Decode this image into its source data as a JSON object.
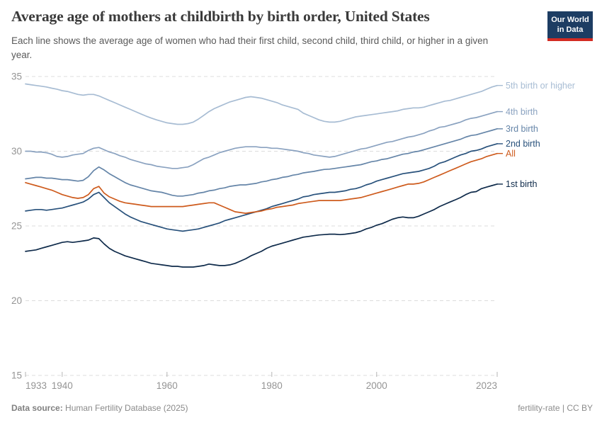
{
  "header": {
    "title": "Average age of mothers at childbirth by birth order, United States",
    "subtitle": "Each line shows the average age of women who had their first child, second child, third child, or higher in a given year.",
    "logo": {
      "line1": "Our World",
      "line2": "in Data"
    }
  },
  "chart_data": {
    "type": "line",
    "title": "Average age of mothers at childbirth by birth order, United States",
    "xlabel": "",
    "ylabel": "",
    "xlim": [
      1933,
      2023
    ],
    "ylim": [
      15,
      35
    ],
    "yticks": [
      15,
      20,
      25,
      30,
      35
    ],
    "xticks": [
      1933,
      1940,
      1960,
      1980,
      2000,
      2023
    ],
    "grid": "dashed-horizontal",
    "legend_position": "right-of-lines",
    "years": [
      1933,
      1934,
      1935,
      1936,
      1937,
      1938,
      1939,
      1940,
      1941,
      1942,
      1943,
      1944,
      1945,
      1946,
      1947,
      1948,
      1949,
      1950,
      1951,
      1952,
      1953,
      1954,
      1955,
      1956,
      1957,
      1958,
      1959,
      1960,
      1961,
      1962,
      1963,
      1964,
      1965,
      1966,
      1967,
      1968,
      1969,
      1970,
      1971,
      1972,
      1973,
      1974,
      1975,
      1976,
      1977,
      1978,
      1979,
      1980,
      1981,
      1982,
      1983,
      1984,
      1985,
      1986,
      1987,
      1988,
      1989,
      1990,
      1991,
      1992,
      1993,
      1994,
      1995,
      1996,
      1997,
      1998,
      1999,
      2000,
      2001,
      2002,
      2003,
      2004,
      2005,
      2006,
      2007,
      2008,
      2009,
      2010,
      2011,
      2012,
      2013,
      2014,
      2015,
      2016,
      2017,
      2018,
      2019,
      2020,
      2021,
      2022,
      2023
    ],
    "series": [
      {
        "name": "5th birth or higher",
        "color": "#a7bcd3",
        "values": [
          34.5,
          34.45,
          34.4,
          34.35,
          34.3,
          34.22,
          34.15,
          34.05,
          34.0,
          33.9,
          33.8,
          33.75,
          33.8,
          33.8,
          33.7,
          33.55,
          33.4,
          33.25,
          33.1,
          32.95,
          32.8,
          32.65,
          32.5,
          32.35,
          32.22,
          32.1,
          32.0,
          31.9,
          31.85,
          31.8,
          31.8,
          31.85,
          31.95,
          32.15,
          32.4,
          32.65,
          32.85,
          33.0,
          33.15,
          33.3,
          33.4,
          33.5,
          33.6,
          33.65,
          33.6,
          33.55,
          33.45,
          33.35,
          33.25,
          33.1,
          33.0,
          32.9,
          32.8,
          32.55,
          32.4,
          32.25,
          32.1,
          32.0,
          31.95,
          31.95,
          32.0,
          32.1,
          32.2,
          32.3,
          32.35,
          32.4,
          32.45,
          32.5,
          32.55,
          32.6,
          32.65,
          32.7,
          32.8,
          32.85,
          32.9,
          32.9,
          32.95,
          33.05,
          33.15,
          33.25,
          33.35,
          33.4,
          33.5,
          33.6,
          33.7,
          33.8,
          33.9,
          34.0,
          34.15,
          34.3,
          34.4
        ]
      },
      {
        "name": "4th birth",
        "color": "#8aa2c0",
        "values": [
          30.0,
          30.0,
          29.95,
          29.95,
          29.9,
          29.8,
          29.65,
          29.6,
          29.65,
          29.75,
          29.8,
          29.85,
          30.05,
          30.2,
          30.25,
          30.1,
          29.95,
          29.85,
          29.7,
          29.6,
          29.45,
          29.35,
          29.25,
          29.15,
          29.1,
          29.0,
          28.95,
          28.9,
          28.85,
          28.85,
          28.9,
          28.95,
          29.1,
          29.3,
          29.5,
          29.6,
          29.75,
          29.9,
          30.0,
          30.1,
          30.2,
          30.25,
          30.3,
          30.3,
          30.3,
          30.25,
          30.25,
          30.2,
          30.2,
          30.15,
          30.1,
          30.05,
          30.0,
          29.9,
          29.85,
          29.75,
          29.7,
          29.65,
          29.6,
          29.65,
          29.75,
          29.85,
          29.95,
          30.05,
          30.15,
          30.2,
          30.3,
          30.4,
          30.5,
          30.6,
          30.65,
          30.75,
          30.85,
          30.95,
          31.0,
          31.1,
          31.2,
          31.35,
          31.45,
          31.6,
          31.65,
          31.75,
          31.85,
          31.95,
          32.1,
          32.2,
          32.25,
          32.35,
          32.45,
          32.55,
          32.65
        ]
      },
      {
        "name": "3rd birth",
        "color": "#6585a8",
        "values": [
          28.15,
          28.2,
          28.25,
          28.25,
          28.2,
          28.2,
          28.15,
          28.1,
          28.1,
          28.05,
          28.0,
          28.05,
          28.3,
          28.7,
          28.95,
          28.75,
          28.5,
          28.3,
          28.1,
          27.9,
          27.75,
          27.65,
          27.55,
          27.45,
          27.35,
          27.3,
          27.25,
          27.15,
          27.05,
          27.0,
          27.0,
          27.05,
          27.1,
          27.2,
          27.25,
          27.35,
          27.4,
          27.5,
          27.55,
          27.65,
          27.7,
          27.75,
          27.75,
          27.8,
          27.85,
          27.95,
          28.0,
          28.1,
          28.15,
          28.25,
          28.3,
          28.4,
          28.45,
          28.55,
          28.6,
          28.65,
          28.72,
          28.78,
          28.8,
          28.85,
          28.9,
          28.95,
          29.0,
          29.05,
          29.1,
          29.2,
          29.3,
          29.35,
          29.45,
          29.5,
          29.6,
          29.7,
          29.8,
          29.85,
          29.95,
          30.0,
          30.1,
          30.2,
          30.3,
          30.4,
          30.5,
          30.6,
          30.7,
          30.8,
          30.95,
          31.05,
          31.1,
          31.2,
          31.3,
          31.4,
          31.5
        ]
      },
      {
        "name": "2nd birth",
        "color": "#28517b",
        "values": [
          26.0,
          26.05,
          26.1,
          26.1,
          26.05,
          26.1,
          26.15,
          26.2,
          26.3,
          26.4,
          26.5,
          26.6,
          26.8,
          27.1,
          27.25,
          26.9,
          26.55,
          26.3,
          26.05,
          25.8,
          25.6,
          25.45,
          25.3,
          25.2,
          25.1,
          25.0,
          24.9,
          24.8,
          24.75,
          24.7,
          24.65,
          24.7,
          24.75,
          24.8,
          24.9,
          25.0,
          25.1,
          25.2,
          25.35,
          25.45,
          25.55,
          25.65,
          25.75,
          25.85,
          25.95,
          26.05,
          26.15,
          26.3,
          26.4,
          26.5,
          26.6,
          26.7,
          26.8,
          26.95,
          27.0,
          27.1,
          27.15,
          27.2,
          27.25,
          27.25,
          27.3,
          27.35,
          27.45,
          27.5,
          27.6,
          27.75,
          27.85,
          28.0,
          28.1,
          28.2,
          28.3,
          28.4,
          28.5,
          28.55,
          28.6,
          28.65,
          28.75,
          28.85,
          29.0,
          29.2,
          29.3,
          29.45,
          29.6,
          29.75,
          29.85,
          30.0,
          30.05,
          30.15,
          30.3,
          30.4,
          30.5
        ]
      },
      {
        "name": "All",
        "color": "#ce5b1d",
        "values": [
          27.9,
          27.8,
          27.7,
          27.6,
          27.5,
          27.4,
          27.25,
          27.1,
          27.0,
          26.9,
          26.85,
          26.9,
          27.1,
          27.5,
          27.65,
          27.2,
          26.95,
          26.8,
          26.65,
          26.55,
          26.5,
          26.45,
          26.4,
          26.35,
          26.3,
          26.3,
          26.3,
          26.3,
          26.3,
          26.3,
          26.3,
          26.35,
          26.4,
          26.45,
          26.5,
          26.55,
          26.55,
          26.4,
          26.25,
          26.1,
          25.95,
          25.9,
          25.85,
          25.9,
          25.95,
          26.0,
          26.1,
          26.15,
          26.25,
          26.3,
          26.35,
          26.4,
          26.5,
          26.55,
          26.6,
          26.65,
          26.7,
          26.7,
          26.7,
          26.7,
          26.7,
          26.75,
          26.8,
          26.85,
          26.9,
          27.0,
          27.1,
          27.2,
          27.3,
          27.4,
          27.5,
          27.6,
          27.7,
          27.8,
          27.8,
          27.85,
          27.95,
          28.1,
          28.25,
          28.4,
          28.55,
          28.7,
          28.85,
          29.0,
          29.15,
          29.3,
          29.4,
          29.5,
          29.65,
          29.75,
          29.85
        ]
      },
      {
        "name": "1st birth",
        "color": "#0e2a4a",
        "values": [
          23.3,
          23.35,
          23.4,
          23.5,
          23.6,
          23.7,
          23.8,
          23.9,
          23.95,
          23.9,
          23.95,
          24.0,
          24.05,
          24.2,
          24.15,
          23.8,
          23.5,
          23.3,
          23.15,
          23.0,
          22.9,
          22.8,
          22.7,
          22.6,
          22.5,
          22.45,
          22.4,
          22.35,
          22.3,
          22.3,
          22.25,
          22.25,
          22.25,
          22.3,
          22.35,
          22.45,
          22.4,
          22.35,
          22.35,
          22.4,
          22.5,
          22.65,
          22.8,
          23.0,
          23.15,
          23.3,
          23.5,
          23.65,
          23.75,
          23.85,
          23.95,
          24.05,
          24.15,
          24.25,
          24.3,
          24.35,
          24.4,
          24.42,
          24.45,
          24.45,
          24.42,
          24.45,
          24.5,
          24.55,
          24.65,
          24.8,
          24.9,
          25.05,
          25.15,
          25.3,
          25.45,
          25.55,
          25.6,
          25.55,
          25.55,
          25.65,
          25.8,
          25.95,
          26.1,
          26.3,
          26.45,
          26.6,
          26.75,
          26.9,
          27.1,
          27.25,
          27.3,
          27.5,
          27.6,
          27.7,
          27.8
        ]
      }
    ]
  },
  "footer": {
    "source_label": "Data source:",
    "source_text": " Human Fertility Database (2025)",
    "right_text": "fertility-rate | CC BY"
  },
  "colors": {
    "background": "#ffffff",
    "grid": "#dcdcdc",
    "axis_text": "#949494",
    "title": "#3a3a3a",
    "subtitle": "#5a5a5a",
    "footer": "#8a8a8a",
    "logo_bg": "#1d3d63",
    "logo_bar": "#d32b22"
  }
}
